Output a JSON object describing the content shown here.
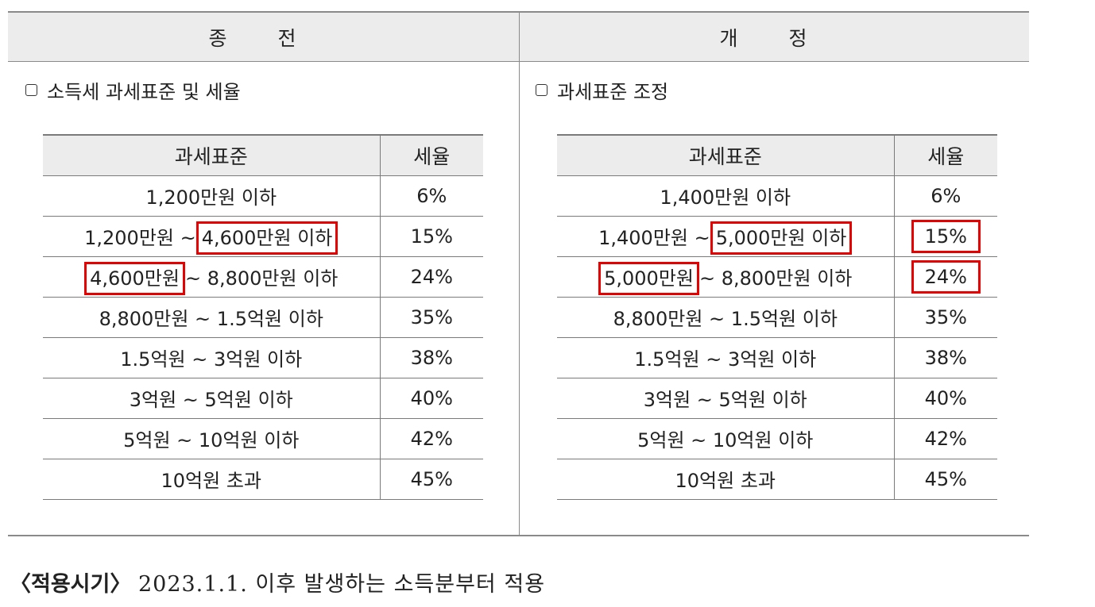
{
  "header": {
    "before": "종 전",
    "after": "개 정"
  },
  "before": {
    "section_title": "소득세 과세표준 및 세율",
    "columns": [
      "과세표준",
      "세율"
    ],
    "rows": [
      {
        "range": "1,200만원 이하",
        "rate": "6%"
      },
      {
        "range_pre": "1,200만원 ~",
        "range_hl": "4,600만원 이하",
        "rate": "15%"
      },
      {
        "range_hl": "4,600만원",
        "range_post": "~ 8,800만원 이하",
        "rate": "24%"
      },
      {
        "range": "8,800만원 ~ 1.5억원 이하",
        "rate": "35%"
      },
      {
        "range": "1.5억원 ~ 3억원 이하",
        "rate": "38%"
      },
      {
        "range": "3억원 ~ 5억원 이하",
        "rate": "40%"
      },
      {
        "range": "5억원 ~ 10억원 이하",
        "rate": "42%"
      },
      {
        "range": "10억원 초과",
        "rate": "45%"
      }
    ]
  },
  "after": {
    "section_title": "과세표준 조정",
    "columns": [
      "과세표준",
      "세율"
    ],
    "rows": [
      {
        "range": "1,400만원 이하",
        "rate": "6%"
      },
      {
        "range_pre": "1,400만원 ~",
        "range_hl": "5,000만원 이하",
        "rate": "15%"
      },
      {
        "range_hl": "5,000만원",
        "range_post": "~ 8,800만원 이하",
        "rate": "24%"
      },
      {
        "range": "8,800만원 ~ 1.5억원 이하",
        "rate": "35%"
      },
      {
        "range": "1.5억원 ~ 3억원 이하",
        "rate": "38%"
      },
      {
        "range": "3억원 ~ 5억원 이하",
        "rate": "40%"
      },
      {
        "range": "5억원 ~ 10억원 이하",
        "rate": "42%"
      },
      {
        "range": "10억원 초과",
        "rate": "45%"
      }
    ]
  },
  "highlight_color": "#e60000",
  "footer": {
    "label": "〈적용시기〉",
    "text": "2023.1.1. 이후 발생하는 소득분부터 적용"
  }
}
